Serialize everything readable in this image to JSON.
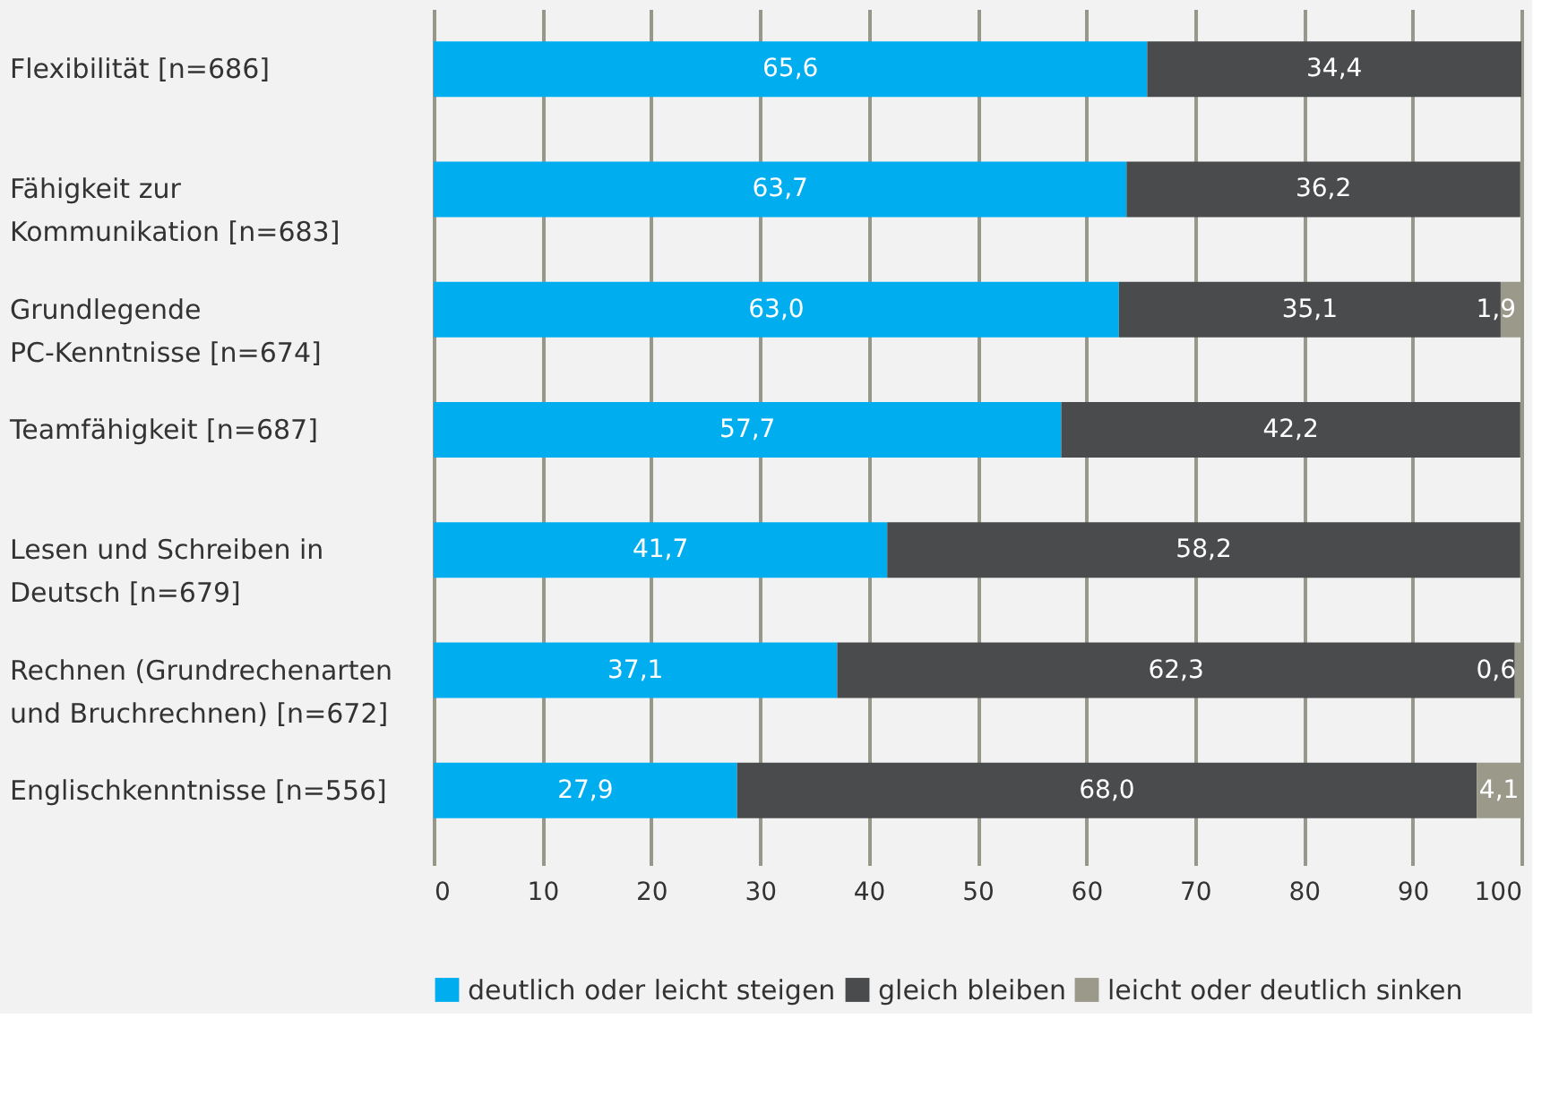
{
  "chart_data": {
    "type": "bar",
    "orientation": "horizontal",
    "stacked": true,
    "categories": [
      "Flexibilität [n=686]",
      "Fähigkeit zur\nKommunikation [n=683]",
      "Grundlegende\nPC-Kenntnisse [n=674]",
      "Teamfähigkeit [n=687]",
      "Lesen und Schreiben in\nDeutsch [n=679]",
      "Rechnen (Grundrechenarten\nund Bruchrechnen) [n=672]",
      "Englischkenntnisse [n=556]"
    ],
    "series": [
      {
        "name": "deutlich oder leicht steigen",
        "color": "#00aeef",
        "values": [
          65.6,
          63.7,
          63.0,
          57.7,
          41.7,
          37.1,
          27.9
        ],
        "value_labels": [
          "65,6",
          "63,7",
          "63,0",
          "57,7",
          "41,7",
          "37,1",
          "27,9"
        ]
      },
      {
        "name": "gleich bleiben",
        "color": "#4a4b4d",
        "values": [
          34.4,
          36.2,
          35.1,
          42.2,
          58.2,
          62.3,
          68.0
        ],
        "value_labels": [
          "34,4",
          "36,2",
          "35,1",
          "42,2",
          "58,2",
          "62,3",
          "68,0"
        ]
      },
      {
        "name": "leicht oder deutlich sinken",
        "color": "#9b9a8a",
        "values": [
          null,
          null,
          1.9,
          null,
          null,
          0.6,
          4.1
        ],
        "value_labels": [
          null,
          null,
          "1,9",
          null,
          null,
          "0,6",
          "4,1"
        ]
      }
    ],
    "xlim": [
      0,
      100
    ],
    "xticks": [
      0,
      10,
      20,
      30,
      40,
      50,
      60,
      70,
      80,
      90,
      100
    ],
    "grid": "x",
    "legend": "bottom"
  }
}
